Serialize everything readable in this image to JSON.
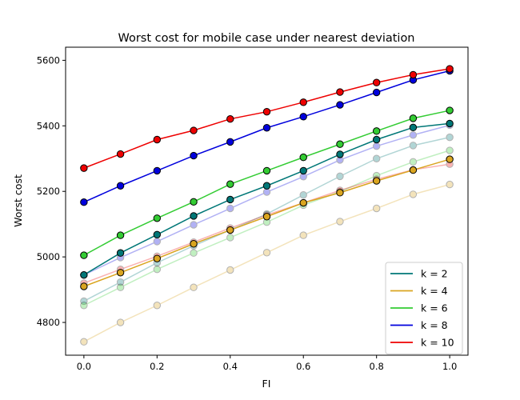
{
  "chart_data": {
    "type": "line",
    "title": "Worst cost for mobile case under nearest deviation",
    "xlabel": "FI",
    "ylabel": "Worst cost",
    "xlim": [
      -0.05,
      1.05
    ],
    "ylim": [
      4700,
      5640
    ],
    "x": [
      0.0,
      0.1,
      0.2,
      0.3,
      0.4,
      0.5,
      0.6,
      0.7,
      0.8,
      0.9,
      1.0
    ],
    "xticks": [
      0.0,
      0.2,
      0.4,
      0.6,
      0.8,
      1.0
    ],
    "xtick_labels": [
      "0.0",
      "0.2",
      "0.4",
      "0.6",
      "0.8",
      "1.0"
    ],
    "yticks": [
      4800,
      5000,
      5200,
      5400,
      5600
    ],
    "ytick_labels": [
      "4800",
      "5000",
      "5200",
      "5400",
      "5600"
    ],
    "grid": false,
    "legend_position": "lower-right",
    "series": [
      {
        "name": "k = 2",
        "color": "#007777",
        "values": [
          4945,
          5012,
          5068,
          5125,
          5175,
          5217,
          5263,
          5313,
          5358,
          5395,
          5407
        ]
      },
      {
        "name": "k = 4",
        "color": "#daa520",
        "values": [
          4910,
          4952,
          4995,
          5040,
          5082,
          5123,
          5165,
          5196,
          5232,
          5265,
          5298
        ]
      },
      {
        "name": "k = 6",
        "color": "#33cc33",
        "values": [
          5005,
          5066,
          5118,
          5168,
          5222,
          5263,
          5304,
          5344,
          5384,
          5423,
          5447
        ]
      },
      {
        "name": "k = 8",
        "color": "#0000dd",
        "values": [
          5167,
          5217,
          5263,
          5309,
          5351,
          5394,
          5428,
          5464,
          5502,
          5540,
          5568
        ]
      },
      {
        "name": "k = 10",
        "color": "#ee0000",
        "values": [
          5271,
          5314,
          5358,
          5386,
          5421,
          5443,
          5472,
          5503,
          5532,
          5556,
          5574
        ]
      }
    ],
    "faded_series": [
      {
        "color": "#007777",
        "values": [
          4865,
          4923,
          4982,
          5034,
          5082,
          5131,
          5189,
          5246,
          5300,
          5340,
          5365
        ]
      },
      {
        "color": "#daa520",
        "values": [
          4741,
          4800,
          4852,
          4907,
          4960,
          5013,
          5066,
          5108,
          5148,
          5191,
          5221
        ]
      },
      {
        "color": "#33cc33",
        "values": [
          4852,
          4907,
          4962,
          5012,
          5059,
          5106,
          5158,
          5199,
          5248,
          5290,
          5325
        ]
      },
      {
        "color": "#0000dd",
        "values": [
          4945,
          4998,
          5047,
          5098,
          5148,
          5198,
          5245,
          5296,
          5338,
          5372,
          5402
        ]
      },
      {
        "color": "#ee0000",
        "values": [
          4920,
          4962,
          5002,
          5045,
          5088,
          5128,
          5165,
          5203,
          5237,
          5266,
          5283
        ]
      }
    ]
  }
}
